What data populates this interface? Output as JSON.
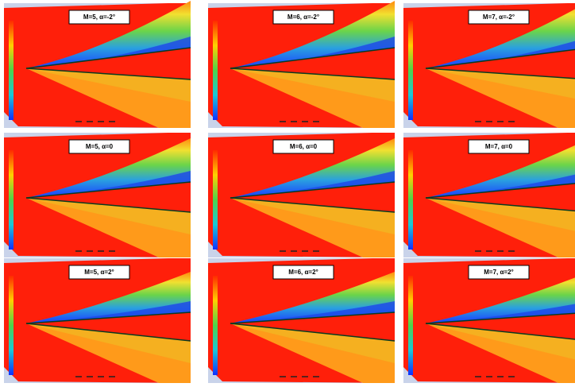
{
  "panels": [
    {
      "label": "M=5, α=-2°"
    },
    {
      "label": "M=6, α=-2°"
    },
    {
      "label": "M=7, α=-2°"
    },
    {
      "label": "M=5, α=0"
    },
    {
      "label": "M=6, α=0"
    },
    {
      "label": "M=7, α=0"
    },
    {
      "label": "M=5, α=2°"
    },
    {
      "label": "M=6, α=2°"
    },
    {
      "label": "M=7, α=2°"
    }
  ]
}
